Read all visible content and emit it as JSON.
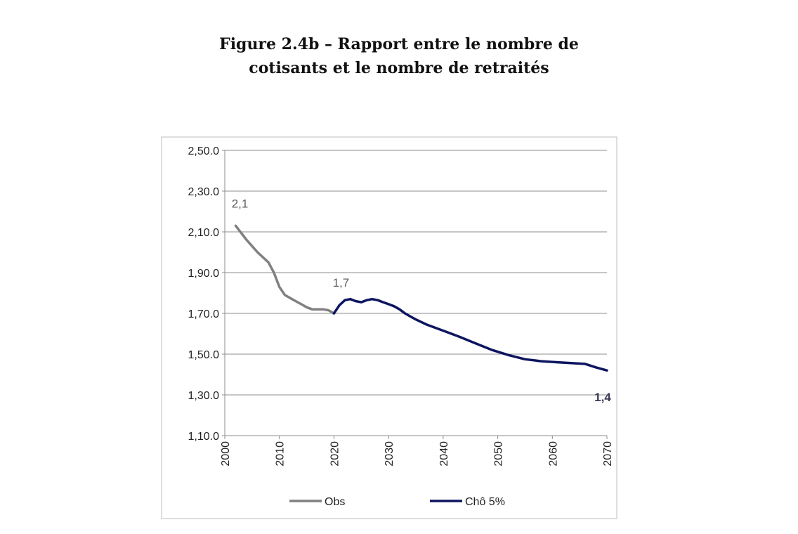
{
  "figure": {
    "title_line1": "Figure 2.4b – Rapport entre le nombre de",
    "title_line2": "cotisants et le nombre de retraités"
  },
  "chart_data": {
    "type": "line",
    "xlim": [
      2000,
      2070
    ],
    "ylim": [
      1.1,
      2.5
    ],
    "x_ticks": [
      "2000",
      "2010",
      "2020",
      "2030",
      "2040",
      "2050",
      "2060",
      "2070"
    ],
    "y_ticks": [
      "2,50.0",
      "2,30.0",
      "2,10.0",
      "1,90.0",
      "1,70.0",
      "1,50.0",
      "1,30.0",
      "1,10.0"
    ],
    "y_tick_values": [
      2.5,
      2.3,
      2.1,
      1.9,
      1.7,
      1.5,
      1.3,
      1.1
    ],
    "grid": "horizontal",
    "legend_position": "bottom",
    "series": [
      {
        "name": "Obs",
        "color": "#808080",
        "x": [
          2002,
          2004,
          2006,
          2008,
          2009,
          2010,
          2011,
          2012,
          2013,
          2014,
          2015,
          2016,
          2017,
          2018,
          2019,
          2020
        ],
        "y": [
          2.13,
          2.06,
          2.0,
          1.95,
          1.9,
          1.83,
          1.79,
          1.775,
          1.76,
          1.745,
          1.73,
          1.72,
          1.72,
          1.72,
          1.715,
          1.7
        ]
      },
      {
        "name": "Chô 5%",
        "color": "#0d1560",
        "x": [
          2020,
          2021,
          2022,
          2023,
          2024,
          2025,
          2026,
          2027,
          2028,
          2029,
          2030,
          2031,
          2032,
          2033,
          2034,
          2035,
          2037,
          2040,
          2043,
          2046,
          2049,
          2052,
          2055,
          2058,
          2061,
          2064,
          2066,
          2068,
          2070
        ],
        "y": [
          1.7,
          1.74,
          1.765,
          1.77,
          1.76,
          1.755,
          1.765,
          1.77,
          1.765,
          1.755,
          1.745,
          1.735,
          1.72,
          1.7,
          1.685,
          1.67,
          1.645,
          1.615,
          1.585,
          1.552,
          1.52,
          1.495,
          1.475,
          1.465,
          1.46,
          1.455,
          1.452,
          1.435,
          1.42
        ]
      }
    ],
    "annotations": [
      {
        "text": "2,1",
        "x": 2002,
        "y": 2.13,
        "color": "#606060"
      },
      {
        "text": "1,7",
        "x": 2020,
        "y": 1.7,
        "color": "#606060"
      },
      {
        "text": "1,4",
        "x": 2070,
        "y": 1.42,
        "color": "#3a3a55"
      }
    ]
  }
}
